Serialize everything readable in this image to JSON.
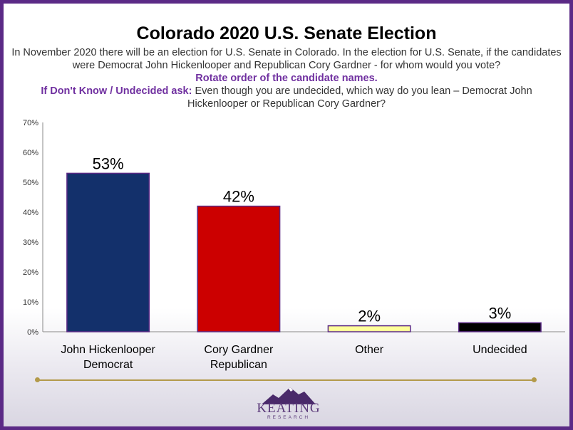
{
  "slide": {
    "title": "Colorado 2020 U.S. Senate Election",
    "question": "In November 2020 there will be an election for U.S. Senate in Colorado. In the election for U.S. Senate, if the candidates were Democrat John Hickenlooper and Republican Cory Gardner - for whom would you vote?",
    "rotate_note": "Rotate order of the candidate names.",
    "followup_lead": "If Don't Know / Undecided ask:",
    "followup_text": "Even though you are undecided, which way do you lean – Democrat John Hickenlooper or Republican Cory Gardner?"
  },
  "chart_data": {
    "type": "bar",
    "categories": [
      [
        "John Hickenlooper",
        "Democrat"
      ],
      [
        "Cory Gardner",
        "Republican"
      ],
      [
        "Other"
      ],
      [
        "Undecided"
      ]
    ],
    "values": [
      53,
      42,
      2,
      3
    ],
    "value_labels": [
      "53%",
      "42%",
      "2%",
      "3%"
    ],
    "colors": [
      "#13306b",
      "#cc0000",
      "#ffff99",
      "#000000"
    ],
    "yticks": [
      "0%",
      "10%",
      "20%",
      "30%",
      "40%",
      "50%",
      "60%",
      "70%"
    ],
    "ylim": [
      0,
      70
    ],
    "grid": false
  },
  "logo": {
    "name": "KEATING",
    "sub": "RESEARCH"
  }
}
